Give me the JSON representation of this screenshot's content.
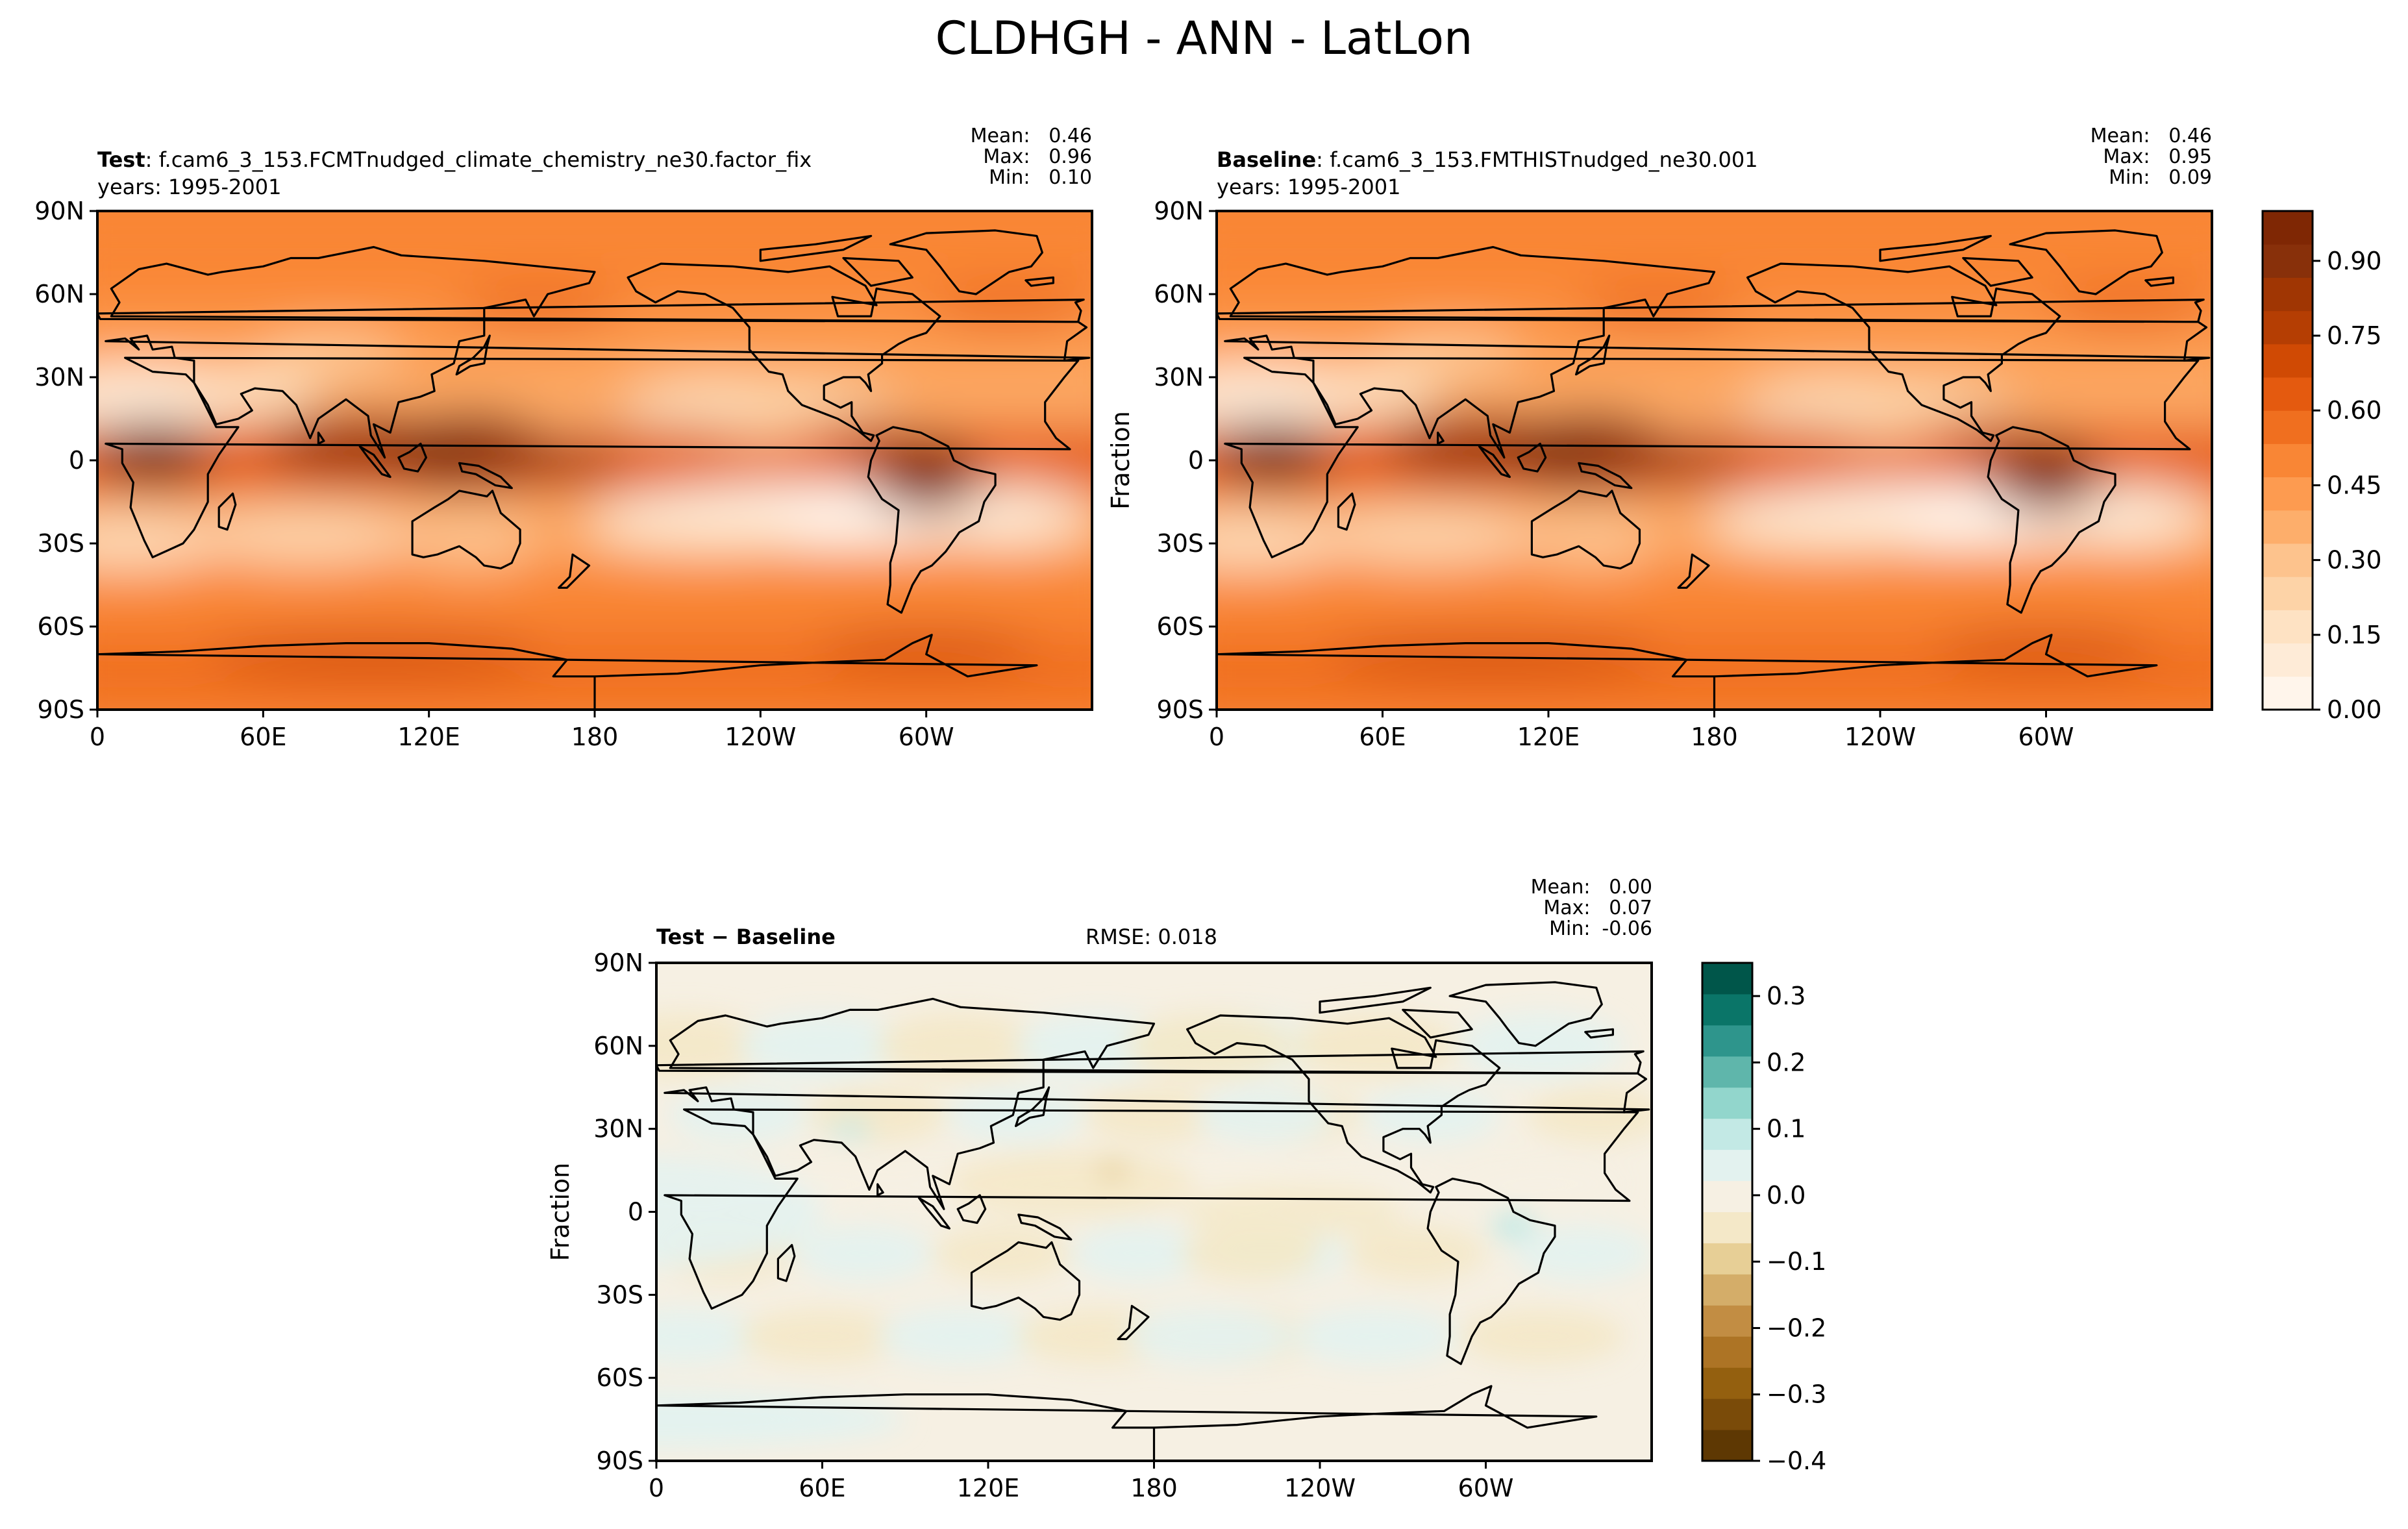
{
  "suptitle": "CLDHGH - ANN - LatLon",
  "colors": {
    "seq_cmap": [
      "#fff5eb",
      "#feebd7",
      "#fee2c3",
      "#fdd3a7",
      "#fdc38d",
      "#fdae6b",
      "#fd9b50",
      "#f98635",
      "#f06f1f",
      "#e45a0f",
      "#d04a04",
      "#b53e03",
      "#a03603",
      "#88300a",
      "#7f2704"
    ],
    "div_cmap": [
      "#5e3803",
      "#7a4b09",
      "#94600f",
      "#ad7425",
      "#c28d43",
      "#d4ad69",
      "#e7cf96",
      "#f4e8c8",
      "#f6f0e3",
      "#e3f2ef",
      "#c3e9e5",
      "#92d6cc",
      "#5fb6ab",
      "#2e958c",
      "#0a7568",
      "#00564a"
    ]
  },
  "panels": {
    "test": {
      "label_bold": "Test",
      "label_rest": ": f.cam6_3_153.FCMTnudged_climate_chemistry_ne30.factor_fix",
      "years": "years: 1995-2001",
      "stats": [
        {
          "k": "Mean:",
          "v": "0.46"
        },
        {
          "k": "Max:",
          "v": "0.96"
        },
        {
          "k": "Min:",
          "v": "0.10"
        }
      ]
    },
    "baseline": {
      "label_bold": "Baseline",
      "label_rest": ": f.cam6_3_153.FMTHISTnudged_ne30.001",
      "years": "years: 1995-2001",
      "ylabel": "Fraction",
      "stats": [
        {
          "k": "Mean:",
          "v": "0.46"
        },
        {
          "k": "Max:",
          "v": "0.95"
        },
        {
          "k": "Min:",
          "v": "0.09"
        }
      ]
    },
    "diff": {
      "label": "Test − Baseline",
      "rmse": "RMSE: 0.018",
      "ylabel": "Fraction",
      "stats": [
        {
          "k": "Mean:",
          "v": "0.00"
        },
        {
          "k": "Max:",
          "v": "0.07"
        },
        {
          "k": "Min:",
          "v": "-0.06"
        }
      ]
    }
  },
  "chart_data": [
    {
      "type": "heatmap",
      "title": "Test",
      "x_ticks": [
        "0",
        "60E",
        "120E",
        "180",
        "120W",
        "60W"
      ],
      "y_ticks": [
        "90N",
        "60N",
        "30N",
        "0",
        "30S",
        "60S",
        "90S"
      ],
      "xlim": [
        0,
        360
      ],
      "ylim": [
        -90,
        90
      ],
      "colorbar_range": [
        0.0,
        1.0
      ],
      "mean": 0.46,
      "max": 0.96,
      "min": 0.1
    },
    {
      "type": "heatmap",
      "title": "Baseline",
      "x_ticks": [
        "0",
        "60E",
        "120E",
        "180",
        "120W",
        "60W"
      ],
      "y_ticks": [
        "90N",
        "60N",
        "30N",
        "0",
        "30S",
        "60S",
        "90S"
      ],
      "xlim": [
        0,
        360
      ],
      "ylim": [
        -90,
        90
      ],
      "colorbar_ticks": [
        "0.00",
        "0.15",
        "0.30",
        "0.45",
        "0.60",
        "0.75",
        "0.90"
      ],
      "colorbar_range": [
        0.0,
        1.0
      ],
      "mean": 0.46,
      "max": 0.95,
      "min": 0.09
    },
    {
      "type": "heatmap",
      "title": "Test − Baseline",
      "x_ticks": [
        "0",
        "60E",
        "120E",
        "180",
        "120W",
        "60W"
      ],
      "y_ticks": [
        "90N",
        "60N",
        "30N",
        "0",
        "30S",
        "60S",
        "90S"
      ],
      "xlim": [
        0,
        360
      ],
      "ylim": [
        -90,
        90
      ],
      "colorbar_ticks": [
        "0.3",
        "0.2",
        "0.1",
        "0.0",
        "−0.1",
        "−0.2",
        "−0.3",
        "−0.4"
      ],
      "colorbar_range": [
        -0.4,
        0.35
      ],
      "mean": 0.0,
      "max": 0.07,
      "min": -0.06,
      "rmse": 0.018
    }
  ]
}
